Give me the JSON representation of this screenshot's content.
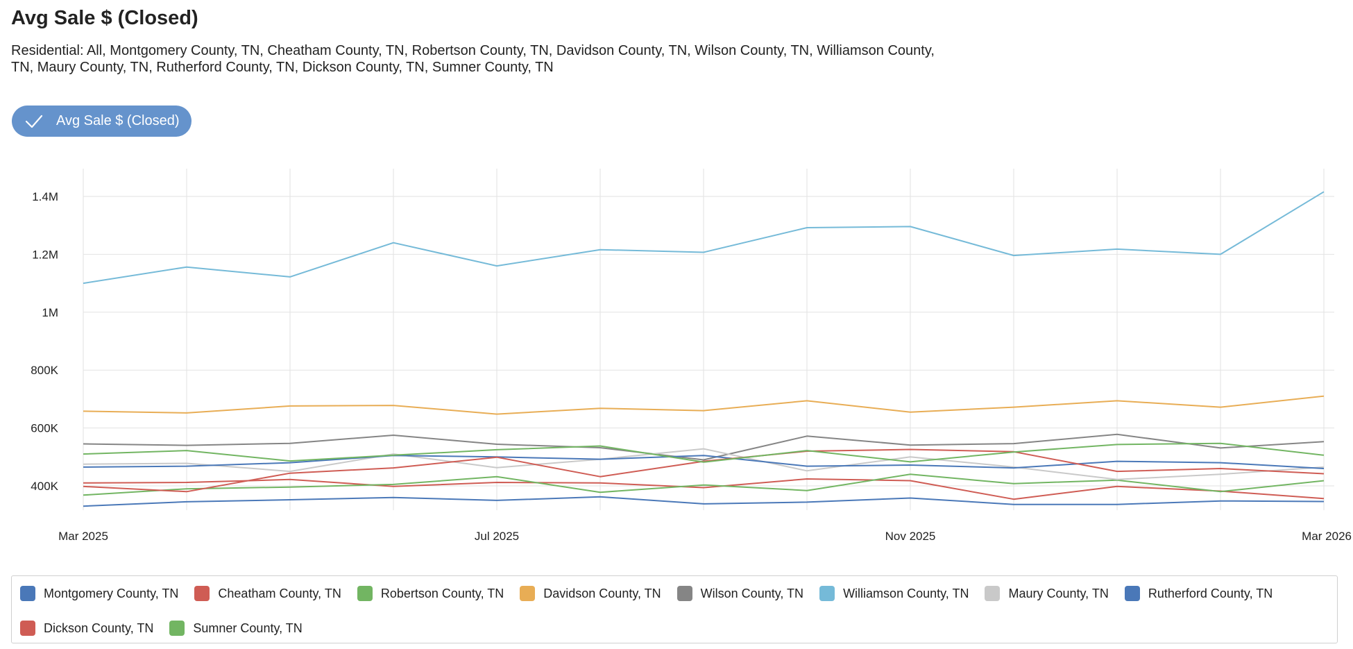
{
  "header": {
    "title": "Avg Sale $ (Closed)",
    "subtitle": "Residential: All, Montgomery County, TN, Cheatham County, TN, Robertson County, TN, Davidson County, TN, Wilson County, TN, Williamson County, TN, Maury County, TN, Rutherford County, TN, Dickson County, TN, Sumner County, TN"
  },
  "metric_toggle": {
    "label": "Avg Sale $ (Closed)",
    "icon": "check-icon",
    "active": true,
    "color": "#6593cc"
  },
  "chart_data": {
    "type": "line",
    "x": [
      "Mar 2025",
      "Apr 2025",
      "May 2025",
      "Jun 2025",
      "Jul 2025",
      "Aug 2025",
      "Sep 2025",
      "Oct 2025",
      "Nov 2025",
      "Dec 2025",
      "Jan 2026",
      "Feb 2026",
      "Mar 2026"
    ],
    "x_tick_labels": [
      "Mar 2025",
      "Jul 2025",
      "Nov 2025",
      "Mar 2026"
    ],
    "y_ticks": [
      400000,
      600000,
      800000,
      1000000,
      1200000,
      1400000
    ],
    "y_tick_labels": [
      "400K",
      "600K",
      "800K",
      "1M",
      "1.2M",
      "1.4M"
    ],
    "ylim": [
      300000,
      1500000
    ],
    "grid": true,
    "legend_position": "bottom",
    "series": [
      {
        "name": "Montgomery County, TN",
        "color": "#4a78b8",
        "values": [
          330000,
          345000,
          352000,
          360000,
          350000,
          362000,
          338000,
          344000,
          358000,
          336000,
          336000,
          348000,
          346000
        ]
      },
      {
        "name": "Cheatham County, TN",
        "color": "#cf5c54",
        "values": [
          410000,
          412000,
          422000,
          398000,
          412000,
          410000,
          394000,
          424000,
          418000,
          354000,
          398000,
          382000,
          356000
        ]
      },
      {
        "name": "Robertson County, TN",
        "color": "#72b562",
        "values": [
          368000,
          390000,
          396000,
          405000,
          432000,
          378000,
          403000,
          384000,
          440000,
          408000,
          420000,
          380000,
          418000
        ]
      },
      {
        "name": "Davidson County, TN",
        "color": "#e8ad55",
        "values": [
          658000,
          652000,
          676000,
          678000,
          648000,
          668000,
          660000,
          694000,
          655000,
          672000,
          694000,
          672000,
          710000
        ]
      },
      {
        "name": "Wilson County, TN",
        "color": "#858585",
        "values": [
          545000,
          540000,
          547000,
          575000,
          544000,
          532000,
          490000,
          572000,
          541000,
          546000,
          578000,
          531000,
          553000
        ]
      },
      {
        "name": "Williamson County, TN",
        "color": "#75bad8",
        "values": [
          1100000,
          1156000,
          1122000,
          1240000,
          1160000,
          1216000,
          1207000,
          1292000,
          1296000,
          1196000,
          1218000,
          1200000,
          1416000
        ]
      },
      {
        "name": "Maury County, TN",
        "color": "#c9c9c9",
        "values": [
          475000,
          478000,
          450000,
          510000,
          463000,
          492000,
          528000,
          452000,
          500000,
          465000,
          422000,
          440000,
          465000
        ]
      },
      {
        "name": "Rutherford County, TN",
        "color": "#4a78b8",
        "values": [
          465000,
          468000,
          480000,
          505000,
          500000,
          492000,
          505000,
          468000,
          472000,
          462000,
          485000,
          480000,
          460000
        ]
      },
      {
        "name": "Dickson County, TN",
        "color": "#cf5c54",
        "values": [
          398000,
          380000,
          444000,
          462000,
          499000,
          432000,
          485000,
          520000,
          526000,
          518000,
          450000,
          460000,
          442000
        ]
      },
      {
        "name": "Sumner County, TN",
        "color": "#72b562",
        "values": [
          510000,
          522000,
          486000,
          506000,
          525000,
          538000,
          482000,
          522000,
          483000,
          517000,
          543000,
          547000,
          506000
        ]
      }
    ]
  }
}
